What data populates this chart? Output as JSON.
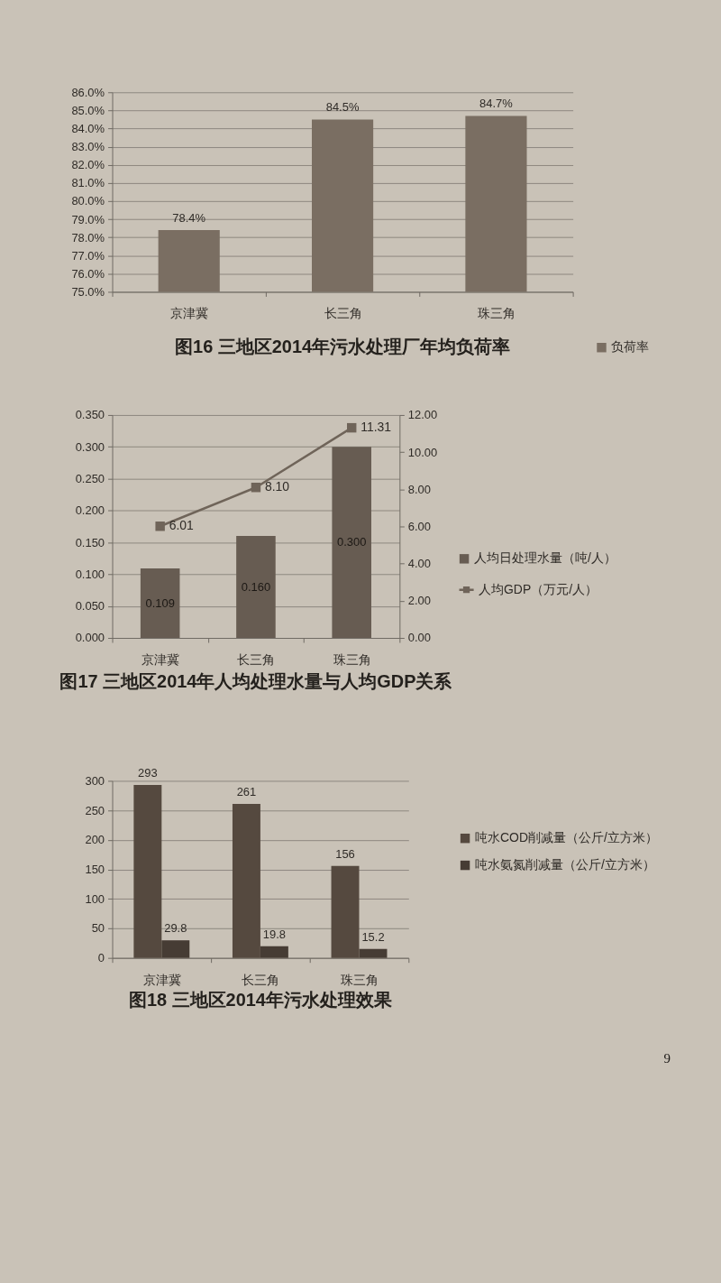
{
  "chart_data": [
    {
      "type": "bar",
      "title": "图16 三地区2014年污水处理厂年均负荷率",
      "categories": [
        "京津冀",
        "长三角",
        "珠三角"
      ],
      "series": [
        {
          "name": "负荷率",
          "color": "#7a6e62",
          "values": [
            78.4,
            84.5,
            84.7
          ],
          "value_labels": [
            "78.4%",
            "84.5%",
            "84.7%"
          ]
        }
      ],
      "ylim": [
        75,
        86
      ],
      "yticks": [
        {
          "value": 75,
          "label": "75.0%"
        },
        {
          "value": 76,
          "label": "76.0%"
        },
        {
          "value": 77,
          "label": "77.0%"
        },
        {
          "value": 78,
          "label": "78.0%"
        },
        {
          "value": 79,
          "label": "79.0%"
        },
        {
          "value": 80,
          "label": "80.0%"
        },
        {
          "value": 81,
          "label": "81.0%"
        },
        {
          "value": 82,
          "label": "82.0%"
        },
        {
          "value": 83,
          "label": "83.0%"
        },
        {
          "value": 84,
          "label": "84.0%"
        },
        {
          "value": 85,
          "label": "85.0%"
        },
        {
          "value": 86,
          "label": "86.0%"
        }
      ],
      "grid": "y",
      "legend": "bottom right"
    },
    {
      "type": "bar",
      "title": "图17 三地区2014年人均处理水量与人均GDP关系",
      "categories": [
        "京津冀",
        "长三角",
        "珠三角"
      ],
      "series": [
        {
          "name": "人均日处理水量（吨/人）",
          "color": "#675c52",
          "values": [
            0.109,
            0.16,
            0.3
          ],
          "value_labels": [
            "0.109",
            "0.160",
            "0.300"
          ]
        },
        {
          "name": "人均GDP（万元/人）",
          "type": "line",
          "axis": "y2",
          "color": "#6f6459",
          "values": [
            6.01,
            8.1,
            11.31
          ],
          "value_labels": [
            "6.01",
            "8.10",
            "11.31"
          ]
        }
      ],
      "ylim": [
        0,
        0.35
      ],
      "yticks": [
        {
          "value": 0,
          "label": "0.000"
        },
        {
          "value": 0.05,
          "label": "0.050"
        },
        {
          "value": 0.1,
          "label": "0.100"
        },
        {
          "value": 0.15,
          "label": "0.150"
        },
        {
          "value": 0.2,
          "label": "0.200"
        },
        {
          "value": 0.25,
          "label": "0.250"
        },
        {
          "value": 0.3,
          "label": "0.300"
        },
        {
          "value": 0.35,
          "label": "0.350"
        }
      ],
      "y2lim": [
        0,
        12
      ],
      "y2ticks": [
        {
          "value": 0,
          "label": "0.00"
        },
        {
          "value": 2,
          "label": "2.00"
        },
        {
          "value": 4,
          "label": "4.00"
        },
        {
          "value": 6,
          "label": "6.00"
        },
        {
          "value": 8,
          "label": "8.00"
        },
        {
          "value": 10,
          "label": "10.00"
        },
        {
          "value": 12,
          "label": "12.00"
        }
      ],
      "grid": "y",
      "legend": "right",
      "marker": "square"
    },
    {
      "type": "bar",
      "title": "图18 三地区2014年污水处理效果",
      "categories": [
        "京津冀",
        "长三角",
        "珠三角"
      ],
      "series": [
        {
          "name": "吨水COD削减量（公斤/立方米）",
          "color": "#55493f",
          "values": [
            293,
            261,
            156
          ]
        },
        {
          "name": "吨水氨氮削减量（公斤/立方米）",
          "color": "#463c34",
          "values": [
            29.8,
            19.8,
            15.2
          ]
        }
      ],
      "ylim": [
        0,
        300
      ],
      "yticks": [
        0,
        50,
        100,
        150,
        200,
        250,
        300
      ],
      "grid": "y",
      "legend": "right",
      "data_labels": true,
      "annotations": [
        "9"
      ]
    }
  ]
}
